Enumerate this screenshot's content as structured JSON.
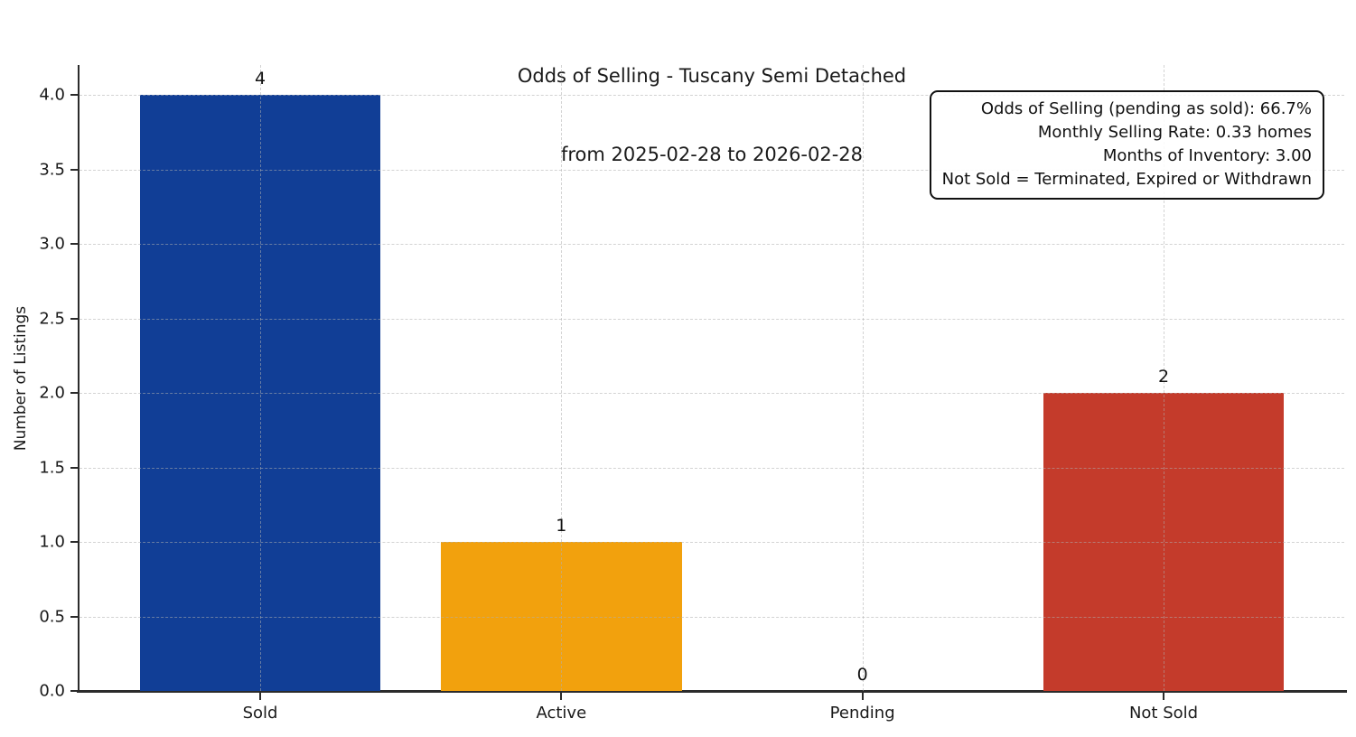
{
  "chart_data": {
    "type": "bar",
    "title": "Odds of Selling - Tuscany Semi Detached",
    "subtitle": "from 2025-02-28 to 2026-02-28",
    "ylabel": "Number of Listings",
    "xlabel": "",
    "categories": [
      "Sold",
      "Active",
      "Pending",
      "Not Sold"
    ],
    "values": [
      4,
      1,
      0,
      2
    ],
    "bar_value_labels": [
      "4",
      "1",
      "0",
      "2"
    ],
    "bar_colors": [
      "#113e96",
      "#f2a10d",
      "#bbbbbb",
      "#c43b2b"
    ],
    "ytick_values": [
      0,
      0.5,
      1,
      1.5,
      2,
      2.5,
      3,
      3.5,
      4
    ],
    "ytick_labels": [
      "0.0",
      "0.5",
      "1.0",
      "1.5",
      "2.0",
      "2.5",
      "3.0",
      "3.5",
      "4.0"
    ],
    "ylim": [
      0,
      4.2
    ],
    "xlim": [
      -0.6,
      3.6
    ],
    "bar_rel_width": 0.8,
    "grid": "dashed-both-axes",
    "legend": "none",
    "annotation": {
      "lines": [
        "Odds of Selling (pending as sold): 66.7%",
        "Monthly Selling Rate: 0.33 homes",
        "Months of Inventory: 3.00",
        "Not Sold = Terminated, Expired or Withdrawn"
      ]
    },
    "colors": {
      "background": "#ffffff",
      "axis": "#2b2b2b",
      "grid": "#afafaf",
      "text": "#1a1a1a"
    }
  }
}
